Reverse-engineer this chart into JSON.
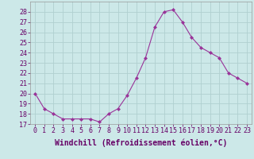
{
  "x": [
    0,
    1,
    2,
    3,
    4,
    5,
    6,
    7,
    8,
    9,
    10,
    11,
    12,
    13,
    14,
    15,
    16,
    17,
    18,
    19,
    20,
    21,
    22,
    23
  ],
  "y": [
    20.0,
    18.5,
    18.0,
    17.5,
    17.5,
    17.5,
    17.5,
    17.2,
    18.0,
    18.5,
    19.8,
    21.5,
    23.5,
    26.5,
    28.0,
    28.2,
    27.0,
    25.5,
    24.5,
    24.0,
    23.5,
    22.0,
    21.5,
    21.0
  ],
  "line_color": "#993399",
  "marker": "D",
  "marker_size": 2,
  "xlabel": "Windchill (Refroidissement éolien,°C)",
  "xlabel_fontsize": 7,
  "ylim": [
    17,
    29
  ],
  "yticks": [
    17,
    18,
    19,
    20,
    21,
    22,
    23,
    24,
    25,
    26,
    27,
    28
  ],
  "xticks": [
    0,
    1,
    2,
    3,
    4,
    5,
    6,
    7,
    8,
    9,
    10,
    11,
    12,
    13,
    14,
    15,
    16,
    17,
    18,
    19,
    20,
    21,
    22,
    23
  ],
  "bg_color": "#cce8e8",
  "grid_color": "#b0d0d0",
  "tick_label_fontsize": 6,
  "line_width": 0.8
}
